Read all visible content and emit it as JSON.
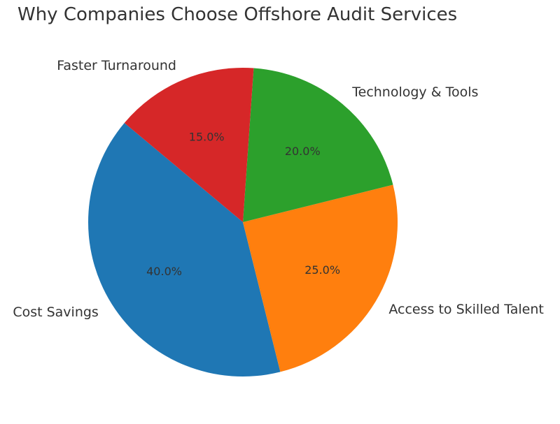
{
  "chart_data": {
    "type": "pie",
    "title": "Why Companies Choose Offshore Audit Services",
    "categories": [
      "Cost Savings",
      "Access to Skilled Talent",
      "Technology & Tools",
      "Faster Turnaround"
    ],
    "values": [
      40,
      25,
      20,
      15
    ],
    "value_labels": [
      "40.0%",
      "25.0%",
      "20.0%",
      "15.0%"
    ],
    "colors": [
      "#1f77b4",
      "#ff7f0e",
      "#2ca02c",
      "#d62728"
    ],
    "start_angle_deg": 140,
    "direction": "counterclockwise"
  }
}
